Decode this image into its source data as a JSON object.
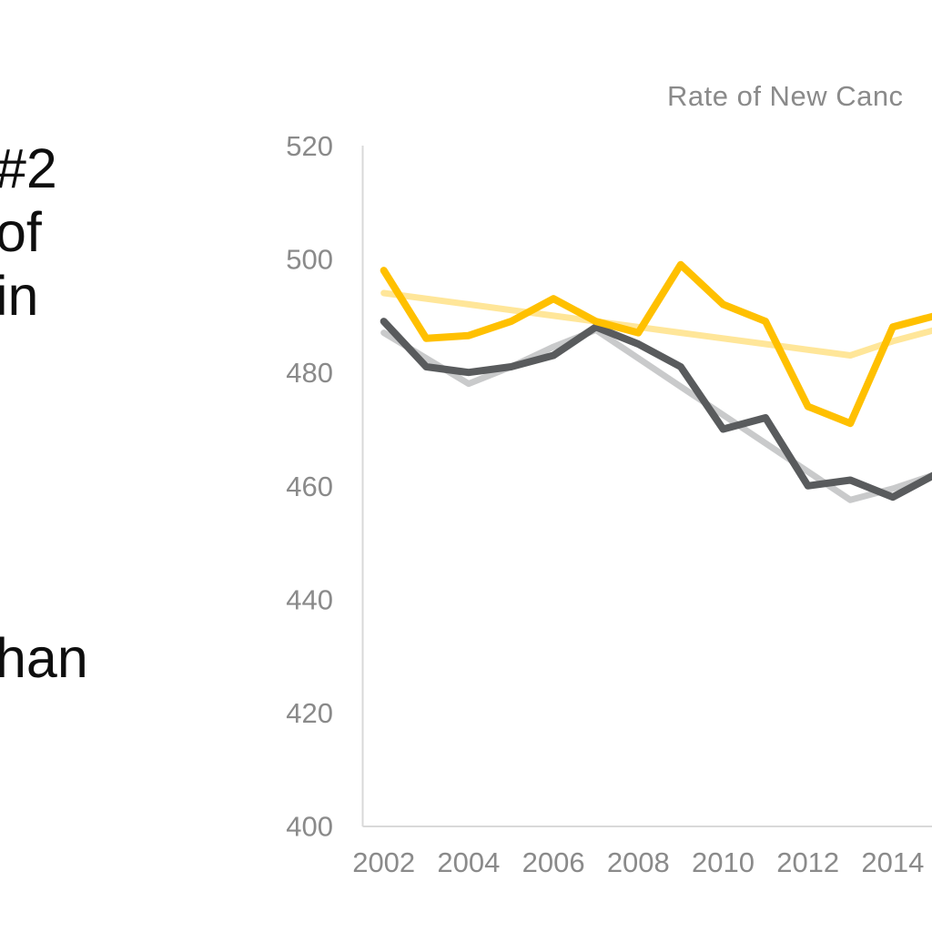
{
  "slide": {
    "left_text_fragments": {
      "line1": "#2",
      "line2": "of",
      "line3": "in",
      "line4": "han"
    },
    "note": "left text block is cut off at the left edge of the screenshot; only these fragments are visible"
  },
  "chart_data": {
    "type": "line",
    "title": "Rate of New Canc",
    "title_color": "#8a8a8a",
    "x": [
      2002,
      2003,
      2004,
      2005,
      2006,
      2007,
      2008,
      2009,
      2010,
      2011,
      2012,
      2013,
      2014,
      2015
    ],
    "xtick_years": [
      2002,
      2004,
      2006,
      2008,
      2010,
      2012,
      2014
    ],
    "xticklabels": [
      "2002",
      "2004",
      "2006",
      "2008",
      "2010",
      "2012",
      "2014"
    ],
    "yticks": [
      400,
      420,
      440,
      460,
      480,
      500,
      520
    ],
    "yticklabels": [
      "400",
      "420",
      "440",
      "460",
      "480",
      "500",
      "520"
    ],
    "ylim": [
      400,
      520
    ],
    "grid": false,
    "legend_position": "none-visible",
    "axis_line_color": "#d9d9d9",
    "tick_label_color": "#8a8a8a",
    "clipped_right_edge": true,
    "series": [
      {
        "name": "pale-gold-trend",
        "color": "#FFE699",
        "width": 7,
        "values": [
          494,
          493,
          492,
          491,
          490,
          489,
          488,
          487,
          486,
          485,
          484,
          483,
          485.5,
          487.5
        ]
      },
      {
        "name": "light-gray-trend",
        "color": "#C9CACB",
        "width": 7,
        "values": [
          487,
          482.5,
          478,
          481,
          484.5,
          487.5,
          482.5,
          477.5,
          472.5,
          467.5,
          462.5,
          457.5,
          459.5,
          462
        ]
      },
      {
        "name": "dark-gray-line",
        "color": "#595B5D",
        "width": 8,
        "values": [
          489,
          481,
          480,
          481,
          483,
          488,
          485,
          481,
          470,
          472,
          460,
          461,
          458,
          462
        ]
      },
      {
        "name": "gold-line",
        "color": "#FFC000",
        "width": 8,
        "values": [
          498,
          486,
          486.5,
          489,
          493,
          489,
          487,
          499,
          492,
          489,
          474,
          471,
          488,
          490
        ]
      }
    ]
  }
}
